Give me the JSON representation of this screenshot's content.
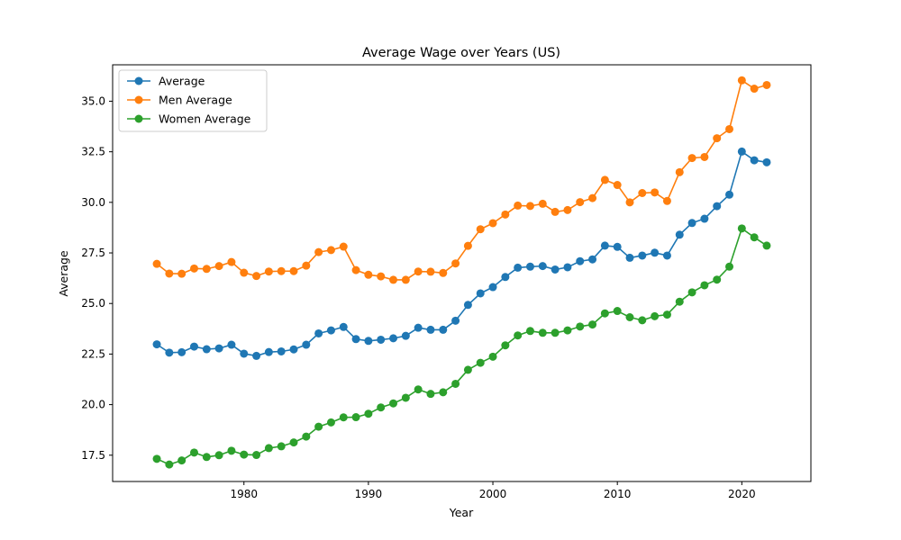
{
  "chart_data": {
    "type": "line",
    "title": "Average Wage over Years (US)",
    "xlabel": "Year",
    "ylabel": "Average",
    "xlim": [
      1969.45,
      2025.55
    ],
    "ylim": [
      16.2,
      36.8
    ],
    "xticks": [
      1980,
      1990,
      2000,
      2010,
      2020
    ],
    "yticks": [
      17.5,
      20.0,
      22.5,
      25.0,
      27.5,
      30.0,
      32.5,
      35.0
    ],
    "ytick_labels": [
      "17.5",
      "20.0",
      "22.5",
      "25.0",
      "27.5",
      "30.0",
      "32.5",
      "35.0"
    ],
    "grid": false,
    "legend_position": "top-left",
    "x": [
      1973,
      1974,
      1975,
      1976,
      1977,
      1978,
      1979,
      1980,
      1981,
      1982,
      1983,
      1984,
      1985,
      1986,
      1987,
      1988,
      1989,
      1990,
      1991,
      1992,
      1993,
      1994,
      1995,
      1996,
      1997,
      1998,
      1999,
      2000,
      2001,
      2002,
      2003,
      2004,
      2005,
      2006,
      2007,
      2008,
      2009,
      2010,
      2011,
      2012,
      2013,
      2014,
      2015,
      2016,
      2017,
      2018,
      2019,
      2020,
      2021,
      2022
    ],
    "series": [
      {
        "name": "Average",
        "color": "#1f77b4",
        "values": [
          22.98,
          22.57,
          22.59,
          22.87,
          22.74,
          22.78,
          22.96,
          22.52,
          22.41,
          22.6,
          22.63,
          22.73,
          22.96,
          23.52,
          23.67,
          23.84,
          23.24,
          23.15,
          23.21,
          23.28,
          23.4,
          23.8,
          23.7,
          23.7,
          24.15,
          24.93,
          25.5,
          25.81,
          26.31,
          26.77,
          26.82,
          26.85,
          26.68,
          26.79,
          27.09,
          27.18,
          27.86,
          27.8,
          27.26,
          27.37,
          27.51,
          27.37,
          28.4,
          28.98,
          29.19,
          29.81,
          30.38,
          32.51,
          32.08,
          31.98
        ]
      },
      {
        "name": "Men Average",
        "color": "#ff7f0e",
        "values": [
          26.96,
          26.48,
          26.47,
          26.73,
          26.71,
          26.85,
          27.05,
          26.52,
          26.36,
          26.58,
          26.6,
          26.6,
          26.87,
          27.54,
          27.64,
          27.81,
          26.65,
          26.42,
          26.34,
          26.17,
          26.17,
          26.58,
          26.57,
          26.51,
          26.98,
          27.85,
          28.67,
          28.97,
          29.4,
          29.84,
          29.82,
          29.93,
          29.53,
          29.62,
          30.01,
          30.21,
          31.11,
          30.86,
          30.0,
          30.46,
          30.49,
          30.07,
          31.49,
          32.19,
          32.24,
          33.17,
          33.62,
          36.03,
          35.62,
          35.8
        ]
      },
      {
        "name": "Women Average",
        "color": "#2ca02c",
        "values": [
          17.32,
          17.04,
          17.24,
          17.63,
          17.41,
          17.5,
          17.72,
          17.53,
          17.51,
          17.85,
          17.94,
          18.13,
          18.42,
          18.91,
          19.12,
          19.37,
          19.38,
          19.55,
          19.86,
          20.06,
          20.34,
          20.75,
          20.53,
          20.61,
          21.03,
          21.72,
          22.07,
          22.37,
          22.93,
          23.42,
          23.64,
          23.55,
          23.55,
          23.67,
          23.86,
          23.96,
          24.51,
          24.63,
          24.32,
          24.17,
          24.37,
          24.45,
          25.09,
          25.55,
          25.9,
          26.18,
          26.82,
          28.71,
          28.27,
          27.86
        ]
      }
    ]
  }
}
